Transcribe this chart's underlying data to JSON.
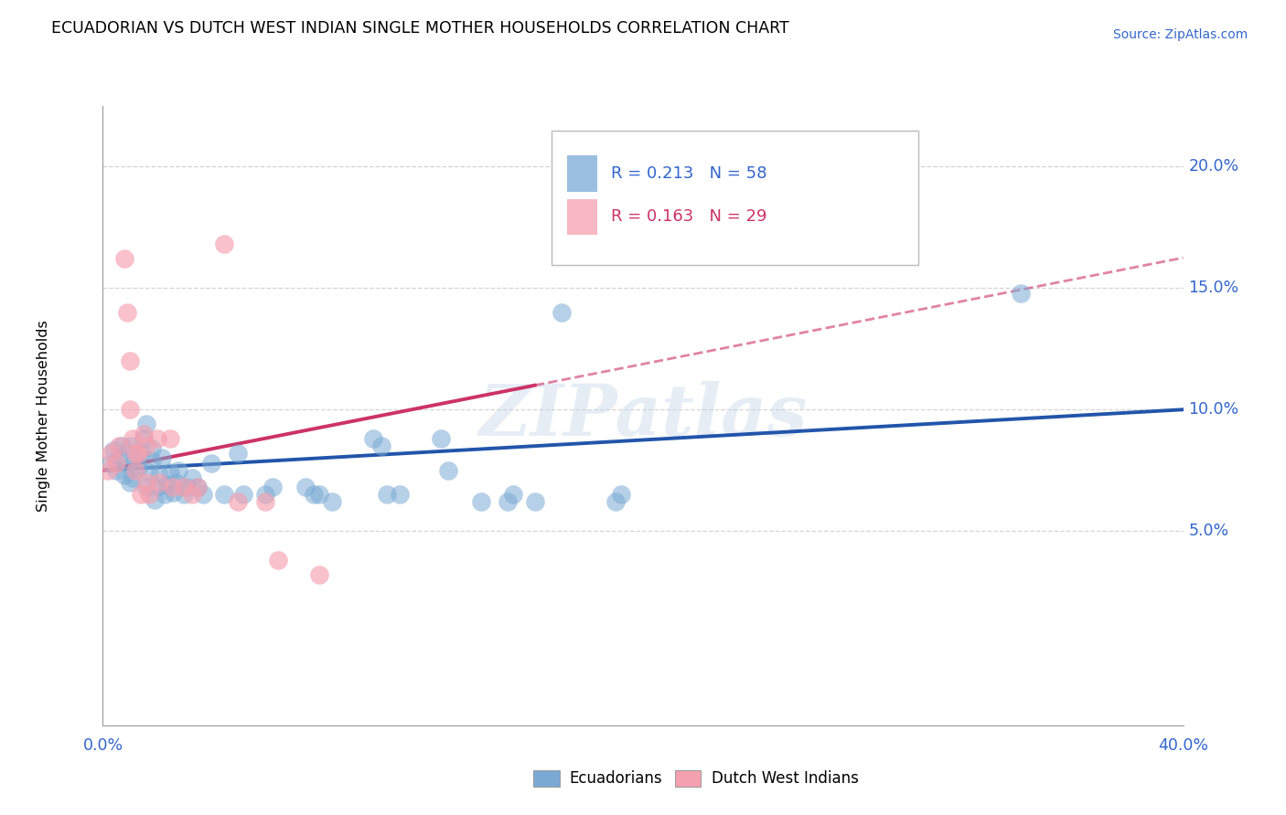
{
  "title": "ECUADORIAN VS DUTCH WEST INDIAN SINGLE MOTHER HOUSEHOLDS CORRELATION CHART",
  "source": "Source: ZipAtlas.com",
  "ylabel": "Single Mother Households",
  "xlim": [
    0.0,
    0.4
  ],
  "ylim": [
    -0.03,
    0.225
  ],
  "yticks": [
    0.05,
    0.1,
    0.15,
    0.2
  ],
  "ytick_labels": [
    "5.0%",
    "10.0%",
    "15.0%",
    "20.0%"
  ],
  "grid_color": "#d0d0d0",
  "background_color": "#ffffff",
  "watermark": "ZIPatlas",
  "legend_blue_r": "R = 0.213",
  "legend_blue_n": "N = 58",
  "legend_pink_r": "R = 0.163",
  "legend_pink_n": "N = 29",
  "blue_color": "#7aaad4",
  "pink_color": "#f5a0b0",
  "blue_line_color": "#2255aa",
  "pink_line_color": "#cc3366",
  "blue_scatter": [
    [
      0.003,
      0.078
    ],
    [
      0.004,
      0.083
    ],
    [
      0.005,
      0.075
    ],
    [
      0.006,
      0.08
    ],
    [
      0.007,
      0.085
    ],
    [
      0.008,
      0.073
    ],
    [
      0.009,
      0.078
    ],
    [
      0.01,
      0.07
    ],
    [
      0.01,
      0.085
    ],
    [
      0.011,
      0.072
    ],
    [
      0.012,
      0.079
    ],
    [
      0.013,
      0.076
    ],
    [
      0.014,
      0.082
    ],
    [
      0.015,
      0.088
    ],
    [
      0.016,
      0.094
    ],
    [
      0.016,
      0.068
    ],
    [
      0.017,
      0.074
    ],
    [
      0.018,
      0.079
    ],
    [
      0.018,
      0.084
    ],
    [
      0.019,
      0.063
    ],
    [
      0.02,
      0.068
    ],
    [
      0.021,
      0.073
    ],
    [
      0.022,
      0.08
    ],
    [
      0.023,
      0.065
    ],
    [
      0.024,
      0.069
    ],
    [
      0.025,
      0.074
    ],
    [
      0.026,
      0.066
    ],
    [
      0.027,
      0.07
    ],
    [
      0.028,
      0.075
    ],
    [
      0.03,
      0.065
    ],
    [
      0.031,
      0.068
    ],
    [
      0.033,
      0.072
    ],
    [
      0.035,
      0.068
    ],
    [
      0.037,
      0.065
    ],
    [
      0.04,
      0.078
    ],
    [
      0.045,
      0.065
    ],
    [
      0.05,
      0.082
    ],
    [
      0.052,
      0.065
    ],
    [
      0.06,
      0.065
    ],
    [
      0.063,
      0.068
    ],
    [
      0.075,
      0.068
    ],
    [
      0.078,
      0.065
    ],
    [
      0.08,
      0.065
    ],
    [
      0.085,
      0.062
    ],
    [
      0.1,
      0.088
    ],
    [
      0.103,
      0.085
    ],
    [
      0.105,
      0.065
    ],
    [
      0.11,
      0.065
    ],
    [
      0.125,
      0.088
    ],
    [
      0.128,
      0.075
    ],
    [
      0.14,
      0.062
    ],
    [
      0.15,
      0.062
    ],
    [
      0.152,
      0.065
    ],
    [
      0.16,
      0.062
    ],
    [
      0.17,
      0.14
    ],
    [
      0.19,
      0.062
    ],
    [
      0.192,
      0.065
    ],
    [
      0.34,
      0.148
    ]
  ],
  "pink_scatter": [
    [
      0.002,
      0.075
    ],
    [
      0.003,
      0.082
    ],
    [
      0.005,
      0.078
    ],
    [
      0.006,
      0.085
    ],
    [
      0.008,
      0.162
    ],
    [
      0.009,
      0.14
    ],
    [
      0.01,
      0.12
    ],
    [
      0.01,
      0.1
    ],
    [
      0.011,
      0.088
    ],
    [
      0.012,
      0.082
    ],
    [
      0.012,
      0.075
    ],
    [
      0.013,
      0.082
    ],
    [
      0.014,
      0.065
    ],
    [
      0.015,
      0.09
    ],
    [
      0.016,
      0.085
    ],
    [
      0.016,
      0.07
    ],
    [
      0.017,
      0.065
    ],
    [
      0.02,
      0.088
    ],
    [
      0.021,
      0.07
    ],
    [
      0.025,
      0.088
    ],
    [
      0.026,
      0.068
    ],
    [
      0.03,
      0.068
    ],
    [
      0.033,
      0.065
    ],
    [
      0.035,
      0.068
    ],
    [
      0.045,
      0.168
    ],
    [
      0.05,
      0.062
    ],
    [
      0.06,
      0.062
    ],
    [
      0.065,
      0.038
    ],
    [
      0.08,
      0.032
    ]
  ]
}
